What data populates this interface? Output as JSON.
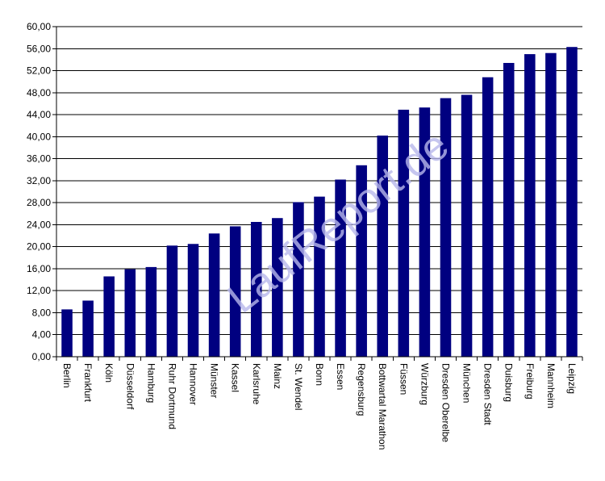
{
  "chart_data": {
    "type": "bar",
    "categories": [
      "Berlin",
      "Frankfurt",
      "Köln",
      "Düsseldorf",
      "Hamburg",
      "Ruhr Dortmund",
      "Hannover",
      "Münster",
      "Kassel",
      "Karlsruhe",
      "Mainz",
      "St. Wendel",
      "Bonn",
      "Essen",
      "Regensburg",
      "Bottwartal Marathon",
      "Füssen",
      "Würzburg",
      "Dresden Oberelbe",
      "München",
      "Dresden Stadt",
      "Duisburg",
      "Freiburg",
      "Mannheim",
      "Leipzig"
    ],
    "values": [
      8.6,
      10.2,
      14.6,
      15.9,
      16.3,
      20.2,
      20.5,
      22.4,
      23.7,
      24.5,
      25.2,
      28.1,
      29.1,
      32.2,
      34.8,
      40.2,
      44.9,
      45.3,
      47.0,
      47.6,
      50.8,
      53.4,
      55.0,
      55.2,
      56.3
    ],
    "yticks": [
      "0,00",
      "4,00",
      "8,00",
      "12,00",
      "16,00",
      "20,00",
      "24,00",
      "28,00",
      "32,00",
      "36,00",
      "40,00",
      "44,00",
      "48,00",
      "52,00",
      "56,00",
      "60,00"
    ],
    "ylim": [
      0,
      60
    ],
    "grid": true,
    "bar_color": "#000080",
    "grid_color": "#000000",
    "watermark": "LaufReport.de",
    "watermark_color": "#b8b8ec"
  }
}
